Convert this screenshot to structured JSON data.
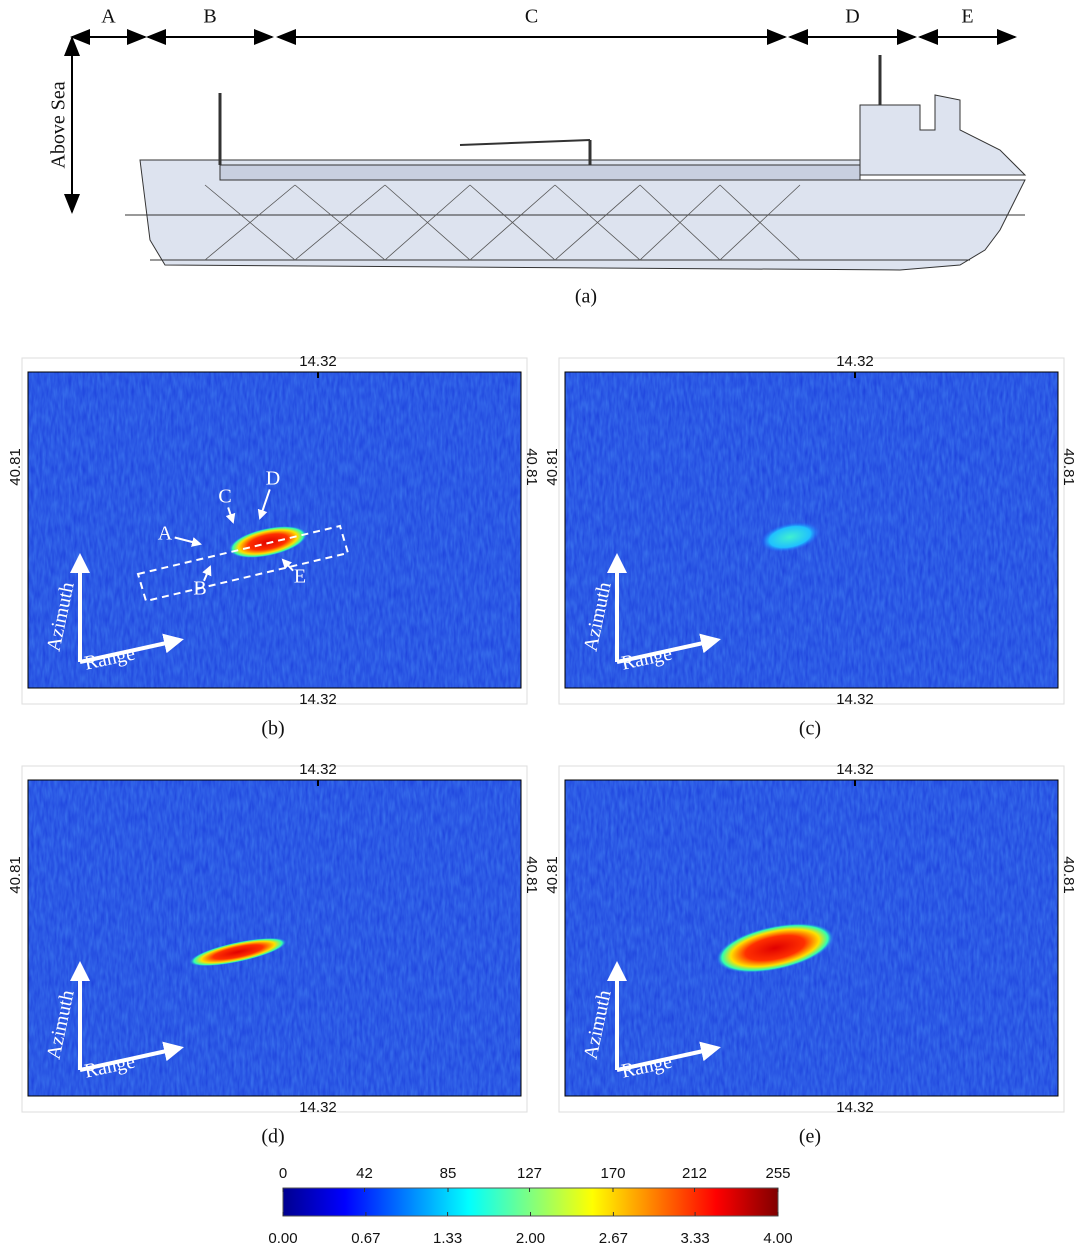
{
  "ship_profile": {
    "sections": [
      "A",
      "B",
      "C",
      "D",
      "E"
    ],
    "vertical_label": "Above Sea",
    "caption": "(a)"
  },
  "panels": [
    {
      "caption": "(b)",
      "top_label": 14.32,
      "bottom_label": 14.32,
      "left_label": 40.81,
      "right_label": 40.81,
      "azimuth_label": "Azimuth",
      "range_label": "Range",
      "annotations": [
        "A",
        "B",
        "C",
        "D",
        "E"
      ]
    },
    {
      "caption": "(c)",
      "top_label": 14.32,
      "bottom_label": 14.32,
      "left_label": 40.81,
      "right_label": 40.81,
      "azimuth_label": "Azimuth",
      "range_label": "Range"
    },
    {
      "caption": "(d)",
      "top_label": 14.32,
      "bottom_label": 14.32,
      "left_label": 40.81,
      "right_label": 40.81,
      "azimuth_label": "Azimuth",
      "range_label": "Range"
    },
    {
      "caption": "(e)",
      "top_label": 14.32,
      "bottom_label": 14.32,
      "left_label": 40.81,
      "right_label": 40.81,
      "azimuth_label": "Azimuth",
      "range_label": "Range"
    }
  ],
  "colorbar": {
    "lim": [
      0,
      255
    ],
    "ticks": [
      0,
      42,
      85,
      127,
      170,
      212,
      255
    ],
    "lim2": [
      0,
      4
    ],
    "ticks2": [
      {
        "value": 0,
        "label": "0.00"
      },
      {
        "value": 0.67,
        "label": "0.67"
      },
      {
        "value": 1.33,
        "label": "1.33"
      },
      {
        "value": 2,
        "label": "2.00"
      },
      {
        "value": 2.67,
        "label": "2.67"
      },
      {
        "value": 3.33,
        "label": "3.33"
      },
      {
        "value": 4,
        "label": "4.00"
      }
    ]
  }
}
